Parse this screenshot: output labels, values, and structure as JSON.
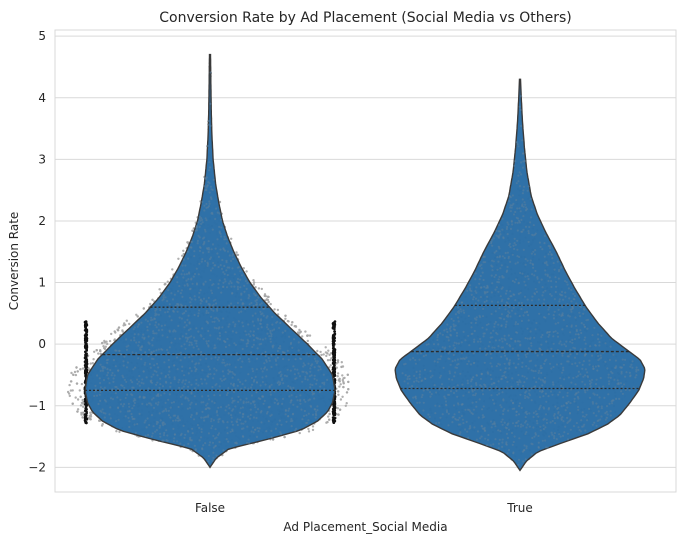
{
  "chart_data": {
    "type": "violin",
    "title": "Conversion Rate by Ad Placement (Social Media vs Others)",
    "xlabel": "Ad Placement_Social Media",
    "ylabel": "Conversion Rate",
    "categories": [
      "False",
      "True"
    ],
    "ylim": [
      -2.4,
      5.1
    ],
    "yticks": [
      -2,
      -1,
      0,
      1,
      2,
      3,
      4,
      5
    ],
    "grid": true,
    "colors": {
      "violin": "#2b6ea6",
      "outline": "#3a3a3a",
      "points": "#a7a7a7",
      "grid": "#d9d9d9",
      "quartile": "#2b2b2b",
      "edge_points": "#111111"
    },
    "violins": [
      {
        "category": "False",
        "min": -2.0,
        "max": 4.7,
        "quartiles": [
          -0.75,
          -0.17,
          0.6
        ],
        "density": [
          [
            -2.0,
            0.0
          ],
          [
            -1.85,
            0.05
          ],
          [
            -1.7,
            0.15
          ],
          [
            -1.55,
            0.45
          ],
          [
            -1.4,
            0.72
          ],
          [
            -1.25,
            0.86
          ],
          [
            -1.1,
            0.94
          ],
          [
            -0.95,
            0.98
          ],
          [
            -0.75,
            1.0
          ],
          [
            -0.5,
            0.98
          ],
          [
            -0.25,
            0.9
          ],
          [
            0.0,
            0.78
          ],
          [
            0.25,
            0.65
          ],
          [
            0.5,
            0.52
          ],
          [
            0.75,
            0.41
          ],
          [
            1.0,
            0.32
          ],
          [
            1.25,
            0.25
          ],
          [
            1.5,
            0.19
          ],
          [
            1.75,
            0.14
          ],
          [
            2.0,
            0.1
          ],
          [
            2.3,
            0.07
          ],
          [
            2.6,
            0.045
          ],
          [
            3.0,
            0.025
          ],
          [
            3.4,
            0.015
          ],
          [
            3.8,
            0.01
          ],
          [
            4.2,
            0.007
          ],
          [
            4.7,
            0.004
          ]
        ]
      },
      {
        "category": "True",
        "min": -2.05,
        "max": 4.3,
        "quartiles": [
          -0.72,
          -0.12,
          0.63
        ],
        "density": [
          [
            -2.05,
            0.0
          ],
          [
            -1.9,
            0.05
          ],
          [
            -1.75,
            0.14
          ],
          [
            -1.6,
            0.34
          ],
          [
            -1.45,
            0.55
          ],
          [
            -1.3,
            0.7
          ],
          [
            -1.15,
            0.8
          ],
          [
            -0.95,
            0.88
          ],
          [
            -0.75,
            0.95
          ],
          [
            -0.55,
            0.99
          ],
          [
            -0.4,
            1.0
          ],
          [
            -0.25,
            0.96
          ],
          [
            -0.1,
            0.86
          ],
          [
            0.1,
            0.73
          ],
          [
            0.35,
            0.62
          ],
          [
            0.6,
            0.53
          ],
          [
            0.9,
            0.44
          ],
          [
            1.2,
            0.36
          ],
          [
            1.5,
            0.29
          ],
          [
            1.8,
            0.21
          ],
          [
            2.1,
            0.14
          ],
          [
            2.4,
            0.09
          ],
          [
            2.8,
            0.055
          ],
          [
            3.2,
            0.035
          ],
          [
            3.6,
            0.02
          ],
          [
            4.0,
            0.01
          ],
          [
            4.3,
            0.004
          ]
        ]
      }
    ]
  }
}
